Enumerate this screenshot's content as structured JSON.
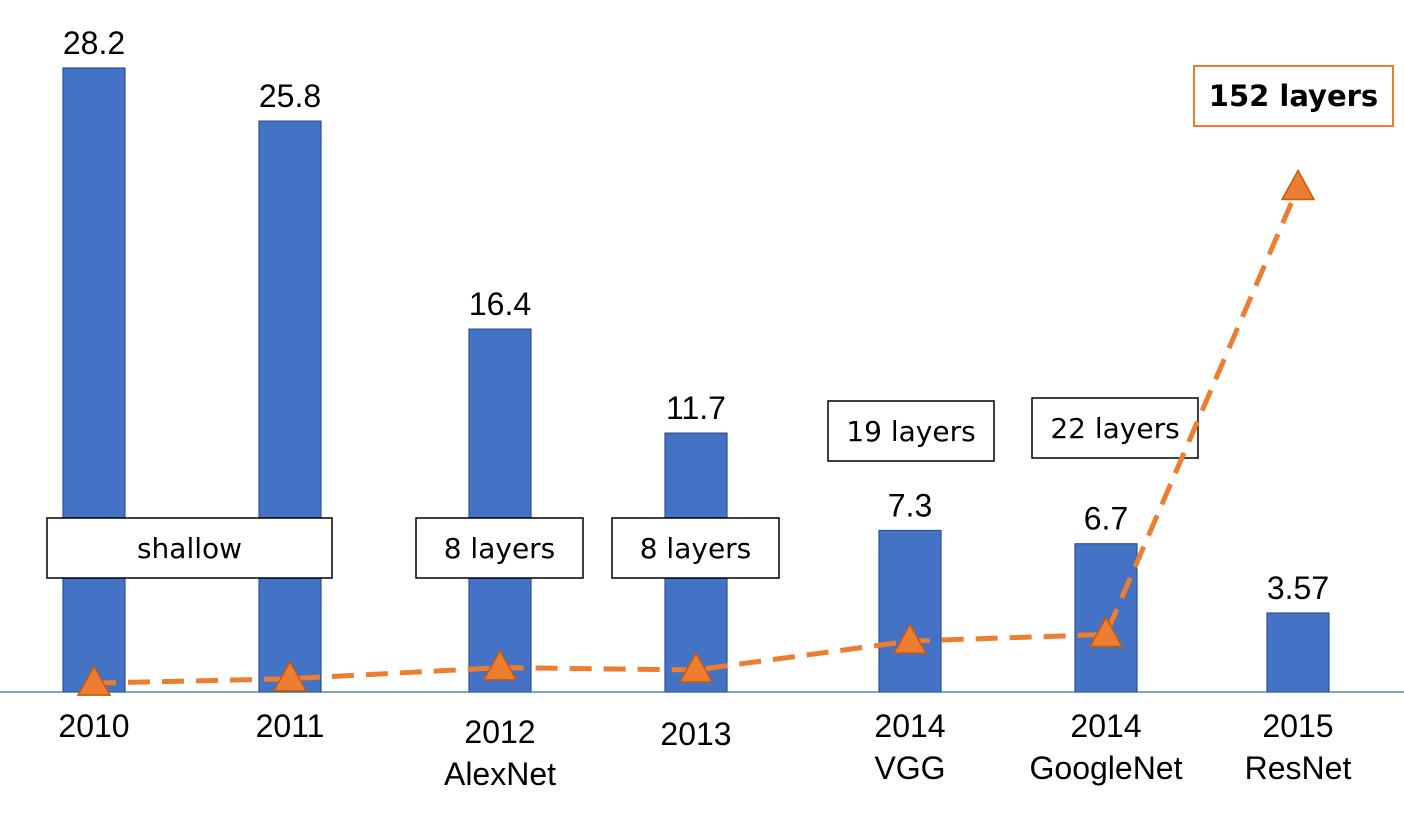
{
  "chart_data": {
    "type": "bar",
    "title": "",
    "xlabel": "",
    "ylabel": "",
    "ylim": [
      0,
      28.2
    ],
    "categories": [
      [
        "2010"
      ],
      [
        "2011"
      ],
      [
        "2012",
        "AlexNet"
      ],
      [
        "2013"
      ],
      [
        "2014",
        "VGG"
      ],
      [
        "2014",
        "GoogleNet"
      ],
      [
        "2015",
        "ResNet"
      ]
    ],
    "series": [
      {
        "name": "error",
        "type": "bar",
        "values": [
          28.2,
          25.8,
          16.4,
          11.7,
          7.3,
          6.7,
          3.57
        ],
        "labels": [
          "28.2",
          "25.8",
          "16.4",
          "11.7",
          "7.3",
          "6.7",
          "3.57"
        ],
        "color": "#4472C4"
      },
      {
        "name": "layers",
        "type": "line",
        "style": "dashed",
        "marker": "triangle",
        "values": [
          0.4,
          0.6,
          1.1,
          1.0,
          2.3,
          2.6,
          22.8
        ],
        "color": "#ED7D31"
      }
    ],
    "annotations": [
      {
        "text": "shallow",
        "style": "black-box"
      },
      {
        "text": "8 layers",
        "style": "black-box"
      },
      {
        "text": "8 layers",
        "style": "black-box"
      },
      {
        "text": "19 layers",
        "style": "black-box"
      },
      {
        "text": "22 layers",
        "style": "black-box"
      },
      {
        "text": "152 layers",
        "style": "orange-box-bold"
      }
    ],
    "grid": false,
    "legend": "none"
  }
}
